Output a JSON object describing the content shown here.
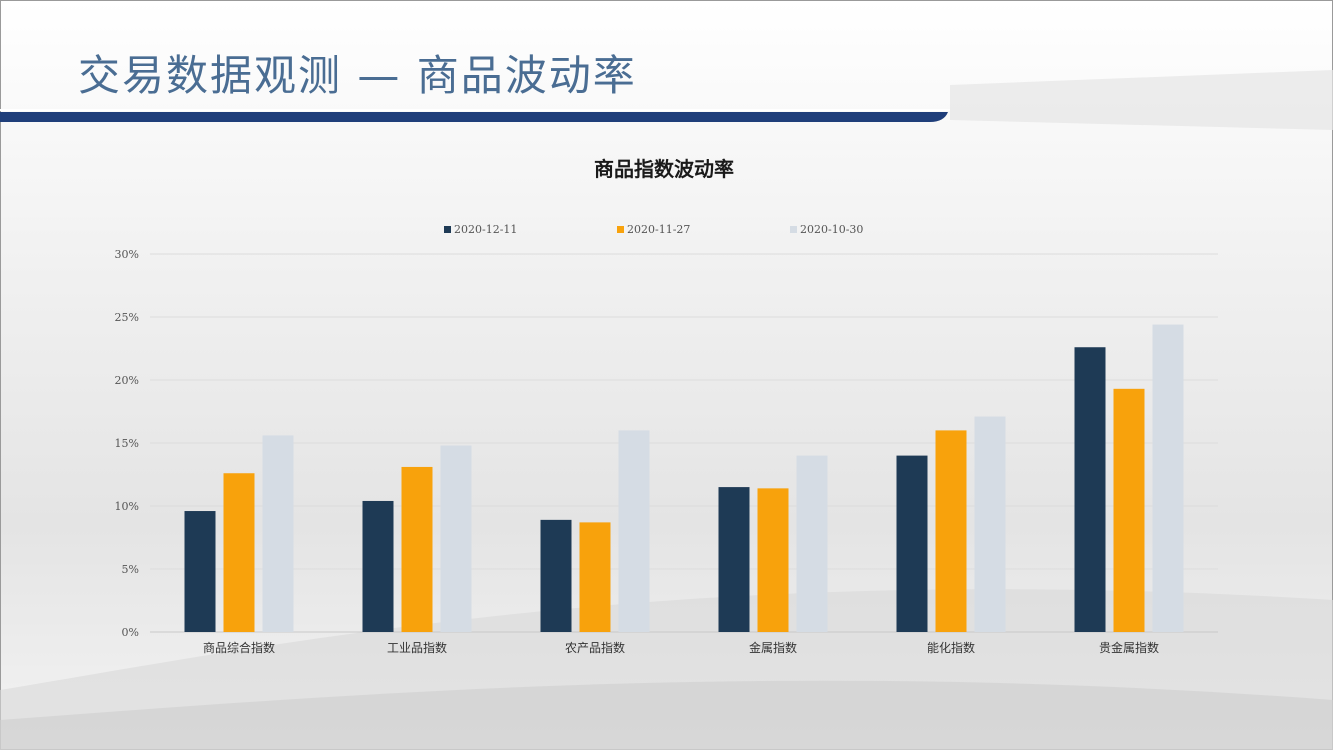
{
  "slide": {
    "title": "交易数据观测 — 商品波动率"
  },
  "colors": {
    "title_text": "#4a6d93",
    "accent_bar": "#1f3e7a",
    "series": [
      "#1e3a55",
      "#f8a20c",
      "#d5dce4"
    ]
  },
  "chart_data": {
    "type": "bar",
    "title": "商品指数波动率",
    "categories": [
      "商品综合指数",
      "工业品指数",
      "农产品指数",
      "金属指数",
      "能化指数",
      "贵金属指数"
    ],
    "series": [
      {
        "name": "2020-12-11",
        "values": [
          9.6,
          10.4,
          8.9,
          11.5,
          14.0,
          22.6
        ]
      },
      {
        "name": "2020-11-27",
        "values": [
          12.6,
          13.1,
          8.7,
          11.4,
          16.0,
          19.3
        ]
      },
      {
        "name": "2020-10-30",
        "values": [
          15.6,
          14.8,
          16.0,
          14.0,
          17.1,
          24.4
        ]
      }
    ],
    "y_ticks": [
      "0%",
      "5%",
      "10%",
      "15%",
      "20%",
      "25%",
      "30%"
    ],
    "ylim": [
      0,
      30
    ],
    "grid": true,
    "legend_position": "top"
  }
}
